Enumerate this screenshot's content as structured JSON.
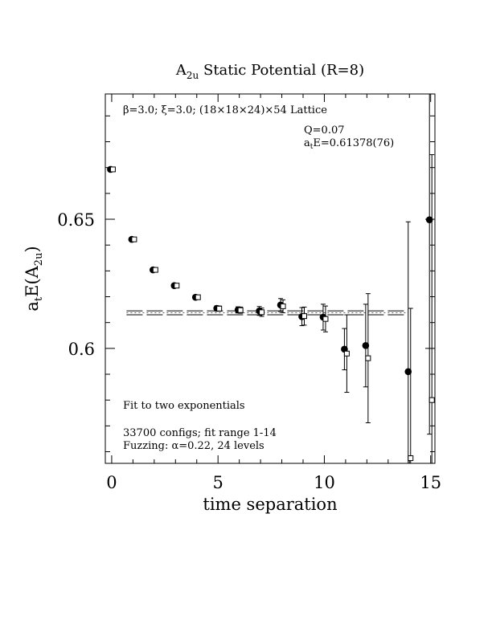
{
  "chart_data": {
    "type": "scatter",
    "title": {
      "main": "A",
      "sub": "2u",
      "rest": " Static Potential (R=8)"
    },
    "xlabel": "time separation",
    "ylabel": {
      "main": "a",
      "sub1": "t",
      "mid": "E(A",
      "sub2": "2u",
      "end": ")"
    },
    "xlim": [
      -0.3,
      15.2
    ],
    "ylim": [
      0.5555,
      0.6985
    ],
    "xticks": [
      0,
      5,
      10,
      15
    ],
    "yticks": [
      0.6,
      0.65
    ],
    "xtick_labels": [
      "0",
      "5",
      "10",
      "15"
    ],
    "ytick_labels": [
      "0.6",
      "0.65"
    ],
    "annotations": {
      "lattice": "β=3.0; ξ=3.0; (18×18×24)×54 Lattice",
      "q": "Q=0.07",
      "energy": {
        "pre": "a",
        "sub": "t",
        "post": "E=0.61378(76)"
      },
      "fit": "Fit to two exponentials",
      "configs": "33700 configs; fit range 1-14",
      "fuzzing": "Fuzzing: α=0.22, 24 levels"
    },
    "fit": {
      "value": 0.61378,
      "error": 0.00076,
      "x_range": [
        1,
        13.5
      ]
    },
    "series": [
      {
        "marker": "filled-circle",
        "x": [
          0,
          1,
          2,
          3,
          4,
          5,
          6,
          7,
          8,
          9,
          10,
          11,
          12,
          14,
          15
        ],
        "y": [
          0.6693,
          0.6422,
          0.6304,
          0.6243,
          0.6198,
          0.6155,
          0.6149,
          0.6145,
          0.6168,
          0.6123,
          0.6121,
          0.5997,
          0.6011,
          0.591,
          0.6498
        ],
        "err": [
          0.0005,
          0.0005,
          0.0006,
          0.0007,
          0.0008,
          0.001,
          0.0012,
          0.0017,
          0.0025,
          0.0035,
          0.005,
          0.008,
          0.016,
          0.058,
          0.083
        ]
      },
      {
        "marker": "open-square",
        "x": [
          0,
          1,
          2,
          3,
          4,
          5,
          6,
          7,
          8,
          9,
          10,
          11,
          12,
          14,
          15
        ],
        "y": [
          0.6693,
          0.6422,
          0.6304,
          0.6243,
          0.6198,
          0.6154,
          0.6148,
          0.614,
          0.6163,
          0.6125,
          0.6114,
          0.598,
          0.5962,
          0.5575,
          0.58
        ],
        "err": [
          0.0005,
          0.0005,
          0.0006,
          0.0007,
          0.0008,
          0.001,
          0.0012,
          0.0016,
          0.0025,
          0.0035,
          0.005,
          0.015,
          0.025,
          0.058,
          0.095
        ]
      }
    ]
  }
}
